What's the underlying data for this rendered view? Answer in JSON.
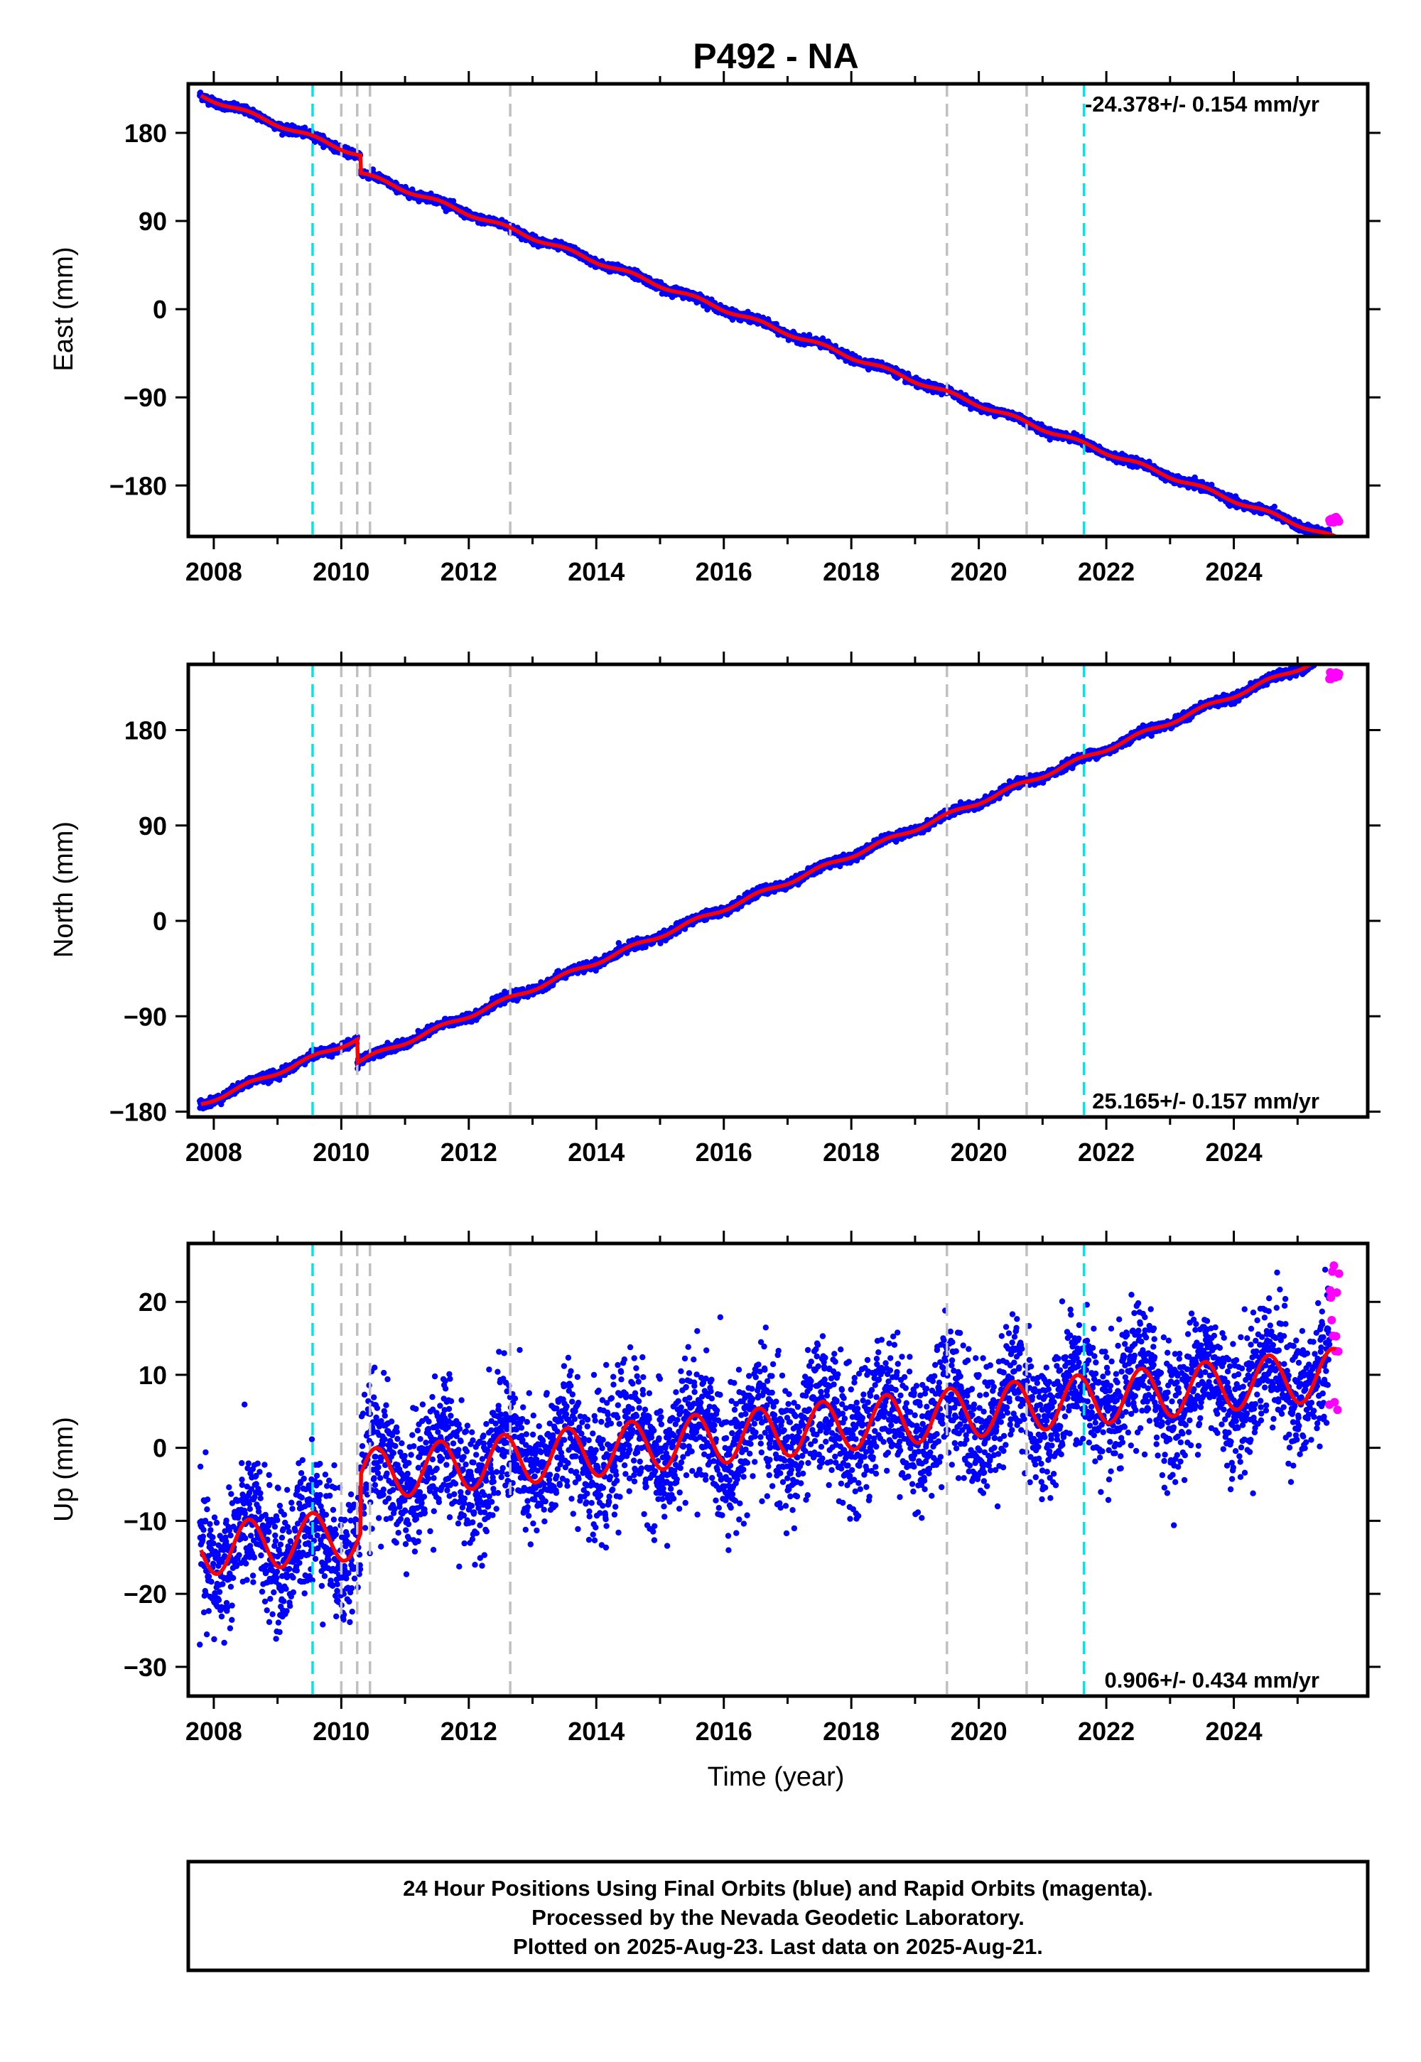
{
  "title": "P492 - NA",
  "xlabel": "Time (year)",
  "x_ticks": [
    "2008",
    "2010",
    "2012",
    "2014",
    "2016",
    "2018",
    "2020",
    "2022",
    "2024"
  ],
  "colors": {
    "final_orbits": "#0000ff",
    "rapid_orbits": "#ff00ff",
    "model_fit": "#ff0000",
    "equipment_change_lines": "#00e5e5",
    "other_event_lines": "#c0c0c0"
  },
  "footer": {
    "line1": "24 Hour Positions Using Final Orbits (blue) and Rapid Orbits (magenta).",
    "line2": "Processed by the Nevada Geodetic Laboratory.",
    "line3": "Plotted on 2025-Aug-23. Last data on 2025-Aug-21."
  },
  "chart_data": [
    {
      "type": "scatter",
      "ylabel": "East (mm)",
      "rate_label": "-24.378+/- 0.154 mm/yr",
      "rate_position": "top-right",
      "xlim": [
        2007.6,
        2026.1
      ],
      "ylim": [
        -232,
        230
      ],
      "y_ticks": [
        "180",
        "90",
        "0",
        "−90",
        "−180"
      ],
      "y_tick_values": [
        180,
        90,
        0,
        -90,
        -180
      ],
      "cyan_events": [
        2009.55,
        2021.65
      ],
      "gray_events": [
        2010.0,
        2010.25,
        2010.45,
        2012.65,
        2019.5,
        2020.75
      ],
      "steps": [
        {
          "year": 2010.3,
          "offset": -18
        }
      ],
      "rate": -24.378,
      "start": {
        "year": 2007.8,
        "value": 218
      },
      "annual_amp": 2,
      "noise": 2,
      "rapid_points": {
        "year_range": [
          2025.5,
          2025.65
        ],
        "value_range": [
          -218,
          -212
        ]
      }
    },
    {
      "type": "scatter",
      "ylabel": "North (mm)",
      "rate_label": "25.165+/- 0.157 mm/yr",
      "rate_position": "bottom-right",
      "xlim": [
        2007.6,
        2026.1
      ],
      "ylim": [
        -185,
        242
      ],
      "y_ticks": [
        "180",
        "90",
        "0",
        "−90",
        "−180"
      ],
      "y_tick_values": [
        180,
        90,
        0,
        -90,
        -180
      ],
      "cyan_events": [
        2009.55,
        2021.65
      ],
      "gray_events": [
        2010.0,
        2010.25,
        2010.45,
        2012.65,
        2019.5,
        2020.75
      ],
      "steps": [
        {
          "year": 2010.25,
          "offset": -22
        }
      ],
      "rate": 25.165,
      "start": {
        "year": 2007.8,
        "value": -173
      },
      "annual_amp": 2,
      "noise": 2,
      "rapid_points": {
        "year_range": [
          2025.5,
          2025.65
        ],
        "value_range": [
          228,
          235
        ]
      }
    },
    {
      "type": "scatter",
      "ylabel": "Up (mm)",
      "rate_label": "0.906+/- 0.434 mm/yr",
      "rate_position": "bottom-right",
      "xlim": [
        2007.6,
        2026.1
      ],
      "ylim": [
        -34,
        28
      ],
      "y_ticks": [
        "20",
        "10",
        "0",
        "−10",
        "−20",
        "−30"
      ],
      "y_tick_values": [
        20,
        10,
        0,
        -10,
        -20,
        -30
      ],
      "cyan_events": [
        2009.55,
        2021.65
      ],
      "gray_events": [
        2010.0,
        2010.25,
        2010.45,
        2012.65,
        2019.5,
        2020.75
      ],
      "steps": [
        {
          "year": 2010.3,
          "offset": 8
        }
      ],
      "rate": 0.906,
      "start": {
        "year": 2007.8,
        "value": -14
      },
      "annual_amp": 3.5,
      "noise": 4.5,
      "rapid_points": {
        "year_range": [
          2025.5,
          2025.65
        ],
        "value_range": [
          5,
          27
        ]
      }
    }
  ]
}
